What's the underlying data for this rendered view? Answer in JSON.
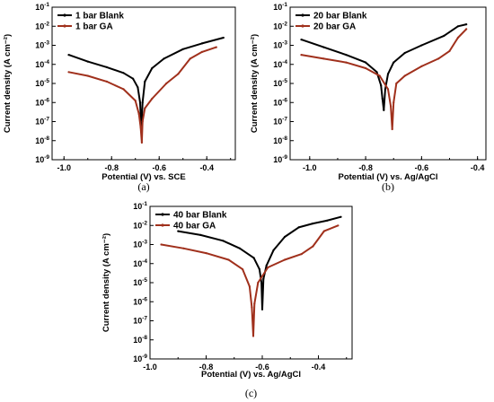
{
  "chart_data": [
    {
      "type": "line",
      "panel_label": "(a)",
      "xlabel": "Potential (V) vs. SCE",
      "ylabel": "Current density (A cm⁻²)",
      "xlim": [
        -1.05,
        -0.28
      ],
      "ylim_exp": [
        -9,
        -1
      ],
      "x_ticks": [
        -1.0,
        -0.8,
        -0.6,
        -0.4
      ],
      "x_tick_labels": [
        "-1.0",
        "-0.8",
        "-0.6",
        "-0.4"
      ],
      "y_ticks_exp": [
        -9,
        -8,
        -7,
        -6,
        -5,
        -4,
        -3,
        -2,
        -1
      ],
      "legend_position": "top-left",
      "series": [
        {
          "name": "1 bar Blank",
          "color": "#000000",
          "x": [
            -0.98,
            -0.9,
            -0.82,
            -0.75,
            -0.71,
            -0.69,
            -0.68,
            -0.675,
            -0.67,
            -0.66,
            -0.63,
            -0.58,
            -0.5,
            -0.42,
            -0.33
          ],
          "y_exp": [
            -3.5,
            -3.85,
            -4.15,
            -4.45,
            -4.75,
            -5.2,
            -6.0,
            -7.5,
            -6.0,
            -4.9,
            -4.2,
            -3.7,
            -3.2,
            -2.9,
            -2.6
          ]
        },
        {
          "name": "1 bar GA",
          "color": "#a0301c",
          "x": [
            -0.98,
            -0.9,
            -0.82,
            -0.75,
            -0.7,
            -0.685,
            -0.678,
            -0.673,
            -0.67,
            -0.66,
            -0.63,
            -0.57,
            -0.52,
            -0.47,
            -0.42,
            -0.36
          ],
          "y_exp": [
            -4.4,
            -4.6,
            -4.9,
            -5.3,
            -5.9,
            -6.6,
            -7.3,
            -8.1,
            -7.0,
            -6.3,
            -5.8,
            -5.0,
            -4.5,
            -3.7,
            -3.35,
            -3.1
          ]
        }
      ]
    },
    {
      "type": "line",
      "panel_label": "(b)",
      "xlabel": "Potential (V) vs. Ag/AgCl",
      "ylabel": "Current density (A cm⁻²)",
      "xlim": [
        -1.07,
        -0.37
      ],
      "ylim_exp": [
        -9,
        -1
      ],
      "x_ticks": [
        -1.0,
        -0.8,
        -0.6,
        -0.4
      ],
      "x_tick_labels": [
        "-1.0",
        "-0.8",
        "-0.6",
        "-0.4"
      ],
      "y_ticks_exp": [
        -9,
        -8,
        -7,
        -6,
        -5,
        -4,
        -3,
        -2,
        -1
      ],
      "legend_position": "top-left",
      "series": [
        {
          "name": "20 bar Blank",
          "color": "#000000",
          "x": [
            -1.03,
            -0.95,
            -0.87,
            -0.8,
            -0.76,
            -0.745,
            -0.74,
            -0.735,
            -0.73,
            -0.72,
            -0.7,
            -0.66,
            -0.6,
            -0.52,
            -0.47,
            -0.44
          ],
          "y_exp": [
            -2.7,
            -3.1,
            -3.5,
            -3.9,
            -4.4,
            -5.1,
            -5.8,
            -6.4,
            -5.3,
            -4.5,
            -3.9,
            -3.4,
            -3.0,
            -2.5,
            -2.0,
            -1.9
          ]
        },
        {
          "name": "20 bar GA",
          "color": "#a0301c",
          "x": [
            -1.03,
            -0.95,
            -0.87,
            -0.8,
            -0.75,
            -0.72,
            -0.71,
            -0.705,
            -0.7,
            -0.69,
            -0.66,
            -0.6,
            -0.54,
            -0.5,
            -0.47,
            -0.44
          ],
          "y_exp": [
            -3.5,
            -3.7,
            -3.9,
            -4.2,
            -4.6,
            -5.3,
            -6.2,
            -7.4,
            -6.0,
            -5.0,
            -4.6,
            -4.1,
            -3.7,
            -3.3,
            -2.6,
            -2.15
          ]
        }
      ]
    },
    {
      "type": "line",
      "panel_label": "(c)",
      "xlabel": "Potential (V) vs. Ag/AgCl",
      "ylabel": "Current density (A cm⁻²)",
      "xlim": [
        -1.0,
        -0.28
      ],
      "ylim_exp": [
        -9,
        -1
      ],
      "x_ticks": [
        -1.0,
        -0.8,
        -0.6,
        -0.4
      ],
      "x_tick_labels": [
        "-1.0",
        "-0.8",
        "-0.6",
        "-0.4"
      ],
      "y_ticks_exp": [
        -9,
        -8,
        -7,
        -6,
        -5,
        -4,
        -3,
        -2,
        -1
      ],
      "legend_position": "top-left",
      "series": [
        {
          "name": "40 bar Blank",
          "color": "#000000",
          "x": [
            -0.9,
            -0.82,
            -0.74,
            -0.68,
            -0.63,
            -0.61,
            -0.603,
            -0.6,
            -0.596,
            -0.585,
            -0.56,
            -0.52,
            -0.47,
            -0.42,
            -0.37,
            -0.32
          ],
          "y_exp": [
            -2.3,
            -2.5,
            -2.8,
            -3.2,
            -3.7,
            -4.3,
            -5.0,
            -6.4,
            -4.8,
            -4.1,
            -3.3,
            -2.6,
            -2.1,
            -1.9,
            -1.75,
            -1.55
          ]
        },
        {
          "name": "40 bar GA",
          "color": "#a0301c",
          "x": [
            -0.96,
            -0.88,
            -0.8,
            -0.72,
            -0.67,
            -0.645,
            -0.637,
            -0.632,
            -0.628,
            -0.615,
            -0.58,
            -0.52,
            -0.46,
            -0.42,
            -0.38,
            -0.33
          ],
          "y_exp": [
            -3.0,
            -3.2,
            -3.45,
            -3.8,
            -4.3,
            -5.2,
            -6.3,
            -7.8,
            -6.1,
            -5.0,
            -4.2,
            -3.8,
            -3.5,
            -3.1,
            -2.3,
            -2.0
          ]
        }
      ]
    }
  ]
}
